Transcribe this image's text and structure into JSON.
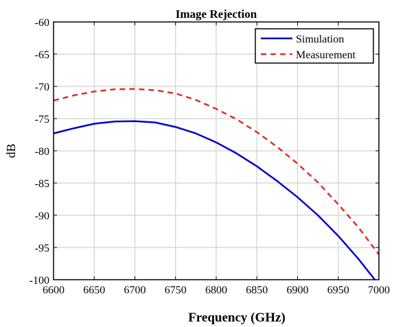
{
  "chart_data": {
    "type": "line",
    "title": "Image Rejection",
    "xlabel": "Frequency (GHz)",
    "ylabel": "dB",
    "xlim": [
      6600,
      7000
    ],
    "ylim": [
      -100,
      -60
    ],
    "xticks": [
      6600,
      6650,
      6700,
      6750,
      6800,
      6850,
      6900,
      6950,
      7000
    ],
    "yticks": [
      -100,
      -95,
      -90,
      -85,
      -80,
      -75,
      -70,
      -65,
      -60
    ],
    "grid": true,
    "legend_position": "top-right",
    "series": [
      {
        "name": "Simulation",
        "color": "#0000cc",
        "style": "solid",
        "x": [
          6600,
          6625,
          6650,
          6675,
          6700,
          6725,
          6750,
          6775,
          6800,
          6825,
          6850,
          6875,
          6900,
          6925,
          6950,
          6975,
          6995
        ],
        "y": [
          -77.3,
          -76.5,
          -75.8,
          -75.45,
          -75.4,
          -75.6,
          -76.3,
          -77.3,
          -78.7,
          -80.4,
          -82.4,
          -84.7,
          -87.2,
          -90.0,
          -93.2,
          -96.8,
          -100.0
        ]
      },
      {
        "name": "Measurement",
        "color": "#d93025",
        "style": "dashed",
        "x": [
          6600,
          6625,
          6650,
          6675,
          6700,
          6725,
          6750,
          6775,
          6800,
          6825,
          6850,
          6875,
          6900,
          6925,
          6950,
          6975,
          7000
        ],
        "y": [
          -72.2,
          -71.4,
          -70.8,
          -70.45,
          -70.4,
          -70.6,
          -71.1,
          -72.1,
          -73.5,
          -75.1,
          -77.1,
          -79.4,
          -82.0,
          -84.9,
          -88.3,
          -91.9,
          -96.1
        ]
      }
    ]
  }
}
